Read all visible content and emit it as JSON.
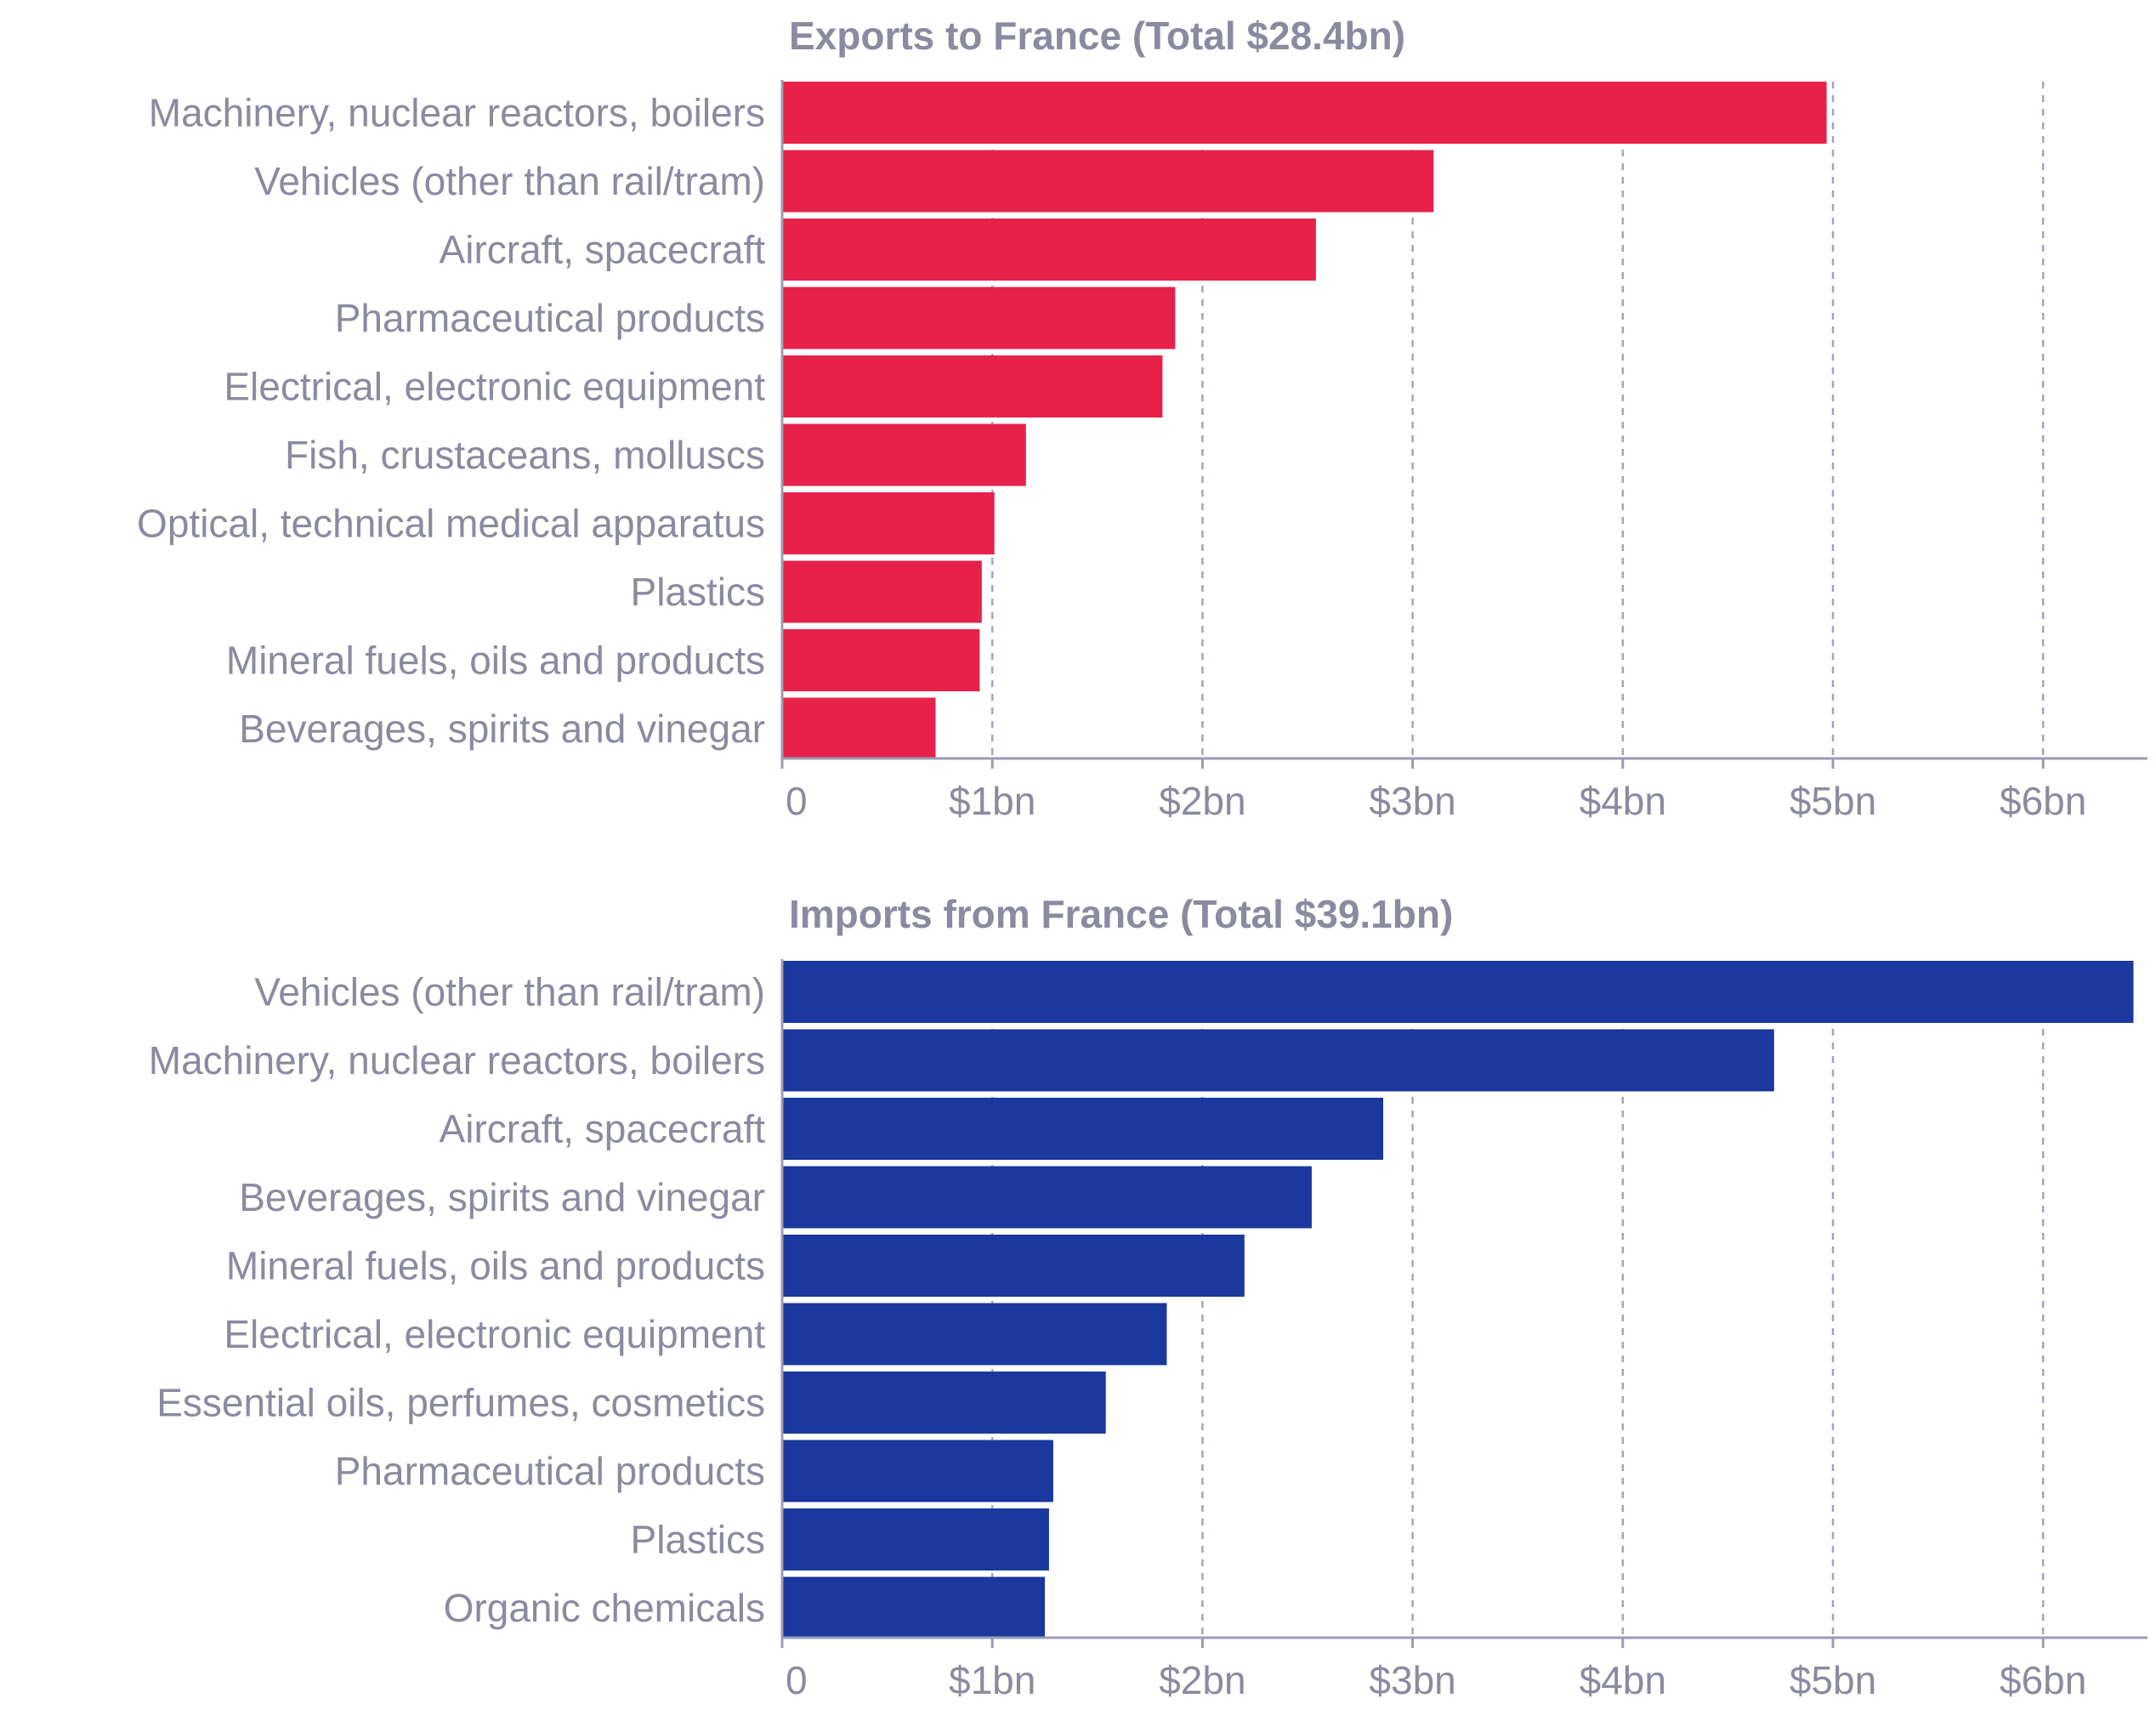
{
  "colors": {
    "exports": "#e6224a",
    "imports": "#1a389d",
    "text": "#8a8aa0",
    "grid": "#a3a3c2"
  },
  "chart_data": [
    {
      "type": "bar",
      "orientation": "horizontal",
      "title": "Exports to France (Total $28.4bn)",
      "series_color": "exports",
      "categories": [
        "Machinery, nuclear reactors, boilers",
        "Vehicles (other than rail/tram)",
        "Aircraft, spacecraft",
        "Pharmaceutical products",
        "Electrical, electronic equipment",
        "Fish, crustaceans, molluscs",
        "Optical, technical medical apparatus",
        "Plastics",
        "Mineral fuels, oils and products",
        "Beverages, spirits and vinegar"
      ],
      "values": [
        4.97,
        3.1,
        2.54,
        1.87,
        1.81,
        1.16,
        1.01,
        0.95,
        0.94,
        0.73
      ],
      "xlim": [
        0,
        6.5
      ],
      "ticks": [
        0,
        1,
        2,
        3,
        4,
        5,
        6
      ],
      "tick_labels": [
        "0",
        "$1bn",
        "$2bn",
        "$3bn",
        "$4bn",
        "$5bn",
        "$6bn"
      ],
      "unit": "$bn",
      "grid": true
    },
    {
      "type": "bar",
      "orientation": "horizontal",
      "title": "Imports from France (Total $39.1bn)",
      "series_color": "imports",
      "categories": [
        "Vehicles (other than rail/tram)",
        "Machinery, nuclear reactors, boilers",
        "Aircraft, spacecraft",
        "Beverages, spirits and vinegar",
        "Mineral fuels, oils and products",
        "Electrical, electronic equipment",
        "Essential oils, perfumes, cosmetics",
        "Pharmaceutical products",
        "Plastics",
        "Organic chemicals"
      ],
      "values": [
        6.43,
        4.72,
        2.86,
        2.52,
        2.2,
        1.83,
        1.54,
        1.29,
        1.27,
        1.25
      ],
      "xlim": [
        0,
        6.5
      ],
      "ticks": [
        0,
        1,
        2,
        3,
        4,
        5,
        6
      ],
      "tick_labels": [
        "0",
        "$1bn",
        "$2bn",
        "$3bn",
        "$4bn",
        "$5bn",
        "$6bn"
      ],
      "unit": "$bn",
      "grid": true
    }
  ]
}
